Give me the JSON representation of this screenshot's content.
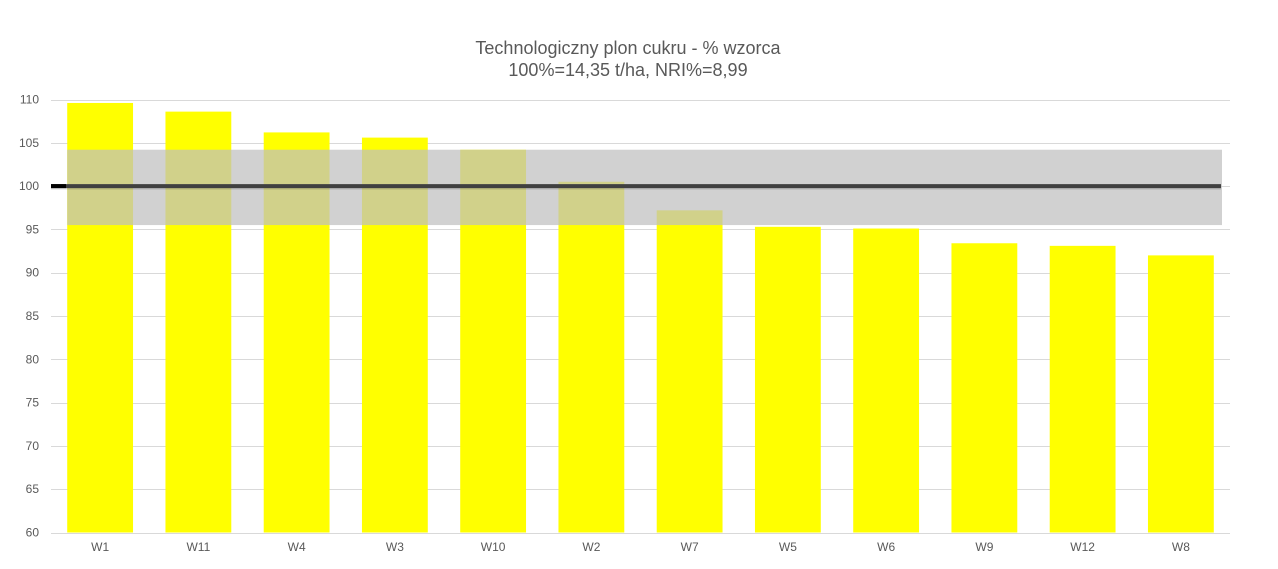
{
  "chart_data": {
    "type": "bar",
    "title": "Technologiczny plon cukru - % wzorca",
    "subtitle": "100%=14,35 t/ha, NRI%=8,99",
    "xlabel": "",
    "ylabel": "",
    "categories": [
      "W1",
      "W11",
      "W4",
      "W3",
      "W10",
      "W2",
      "W7",
      "W5",
      "W6",
      "W9",
      "W12",
      "W8"
    ],
    "values": [
      109.6,
      108.6,
      106.2,
      105.6,
      104.2,
      100.5,
      97.2,
      95.3,
      95.1,
      93.4,
      93.1,
      92.0
    ],
    "ylim": [
      60,
      110
    ],
    "yticks": [
      60,
      65,
      70,
      75,
      80,
      85,
      90,
      95,
      100,
      105,
      110
    ],
    "reference_line": 100,
    "reference_band": [
      95.5,
      104.2
    ],
    "grid": true,
    "legend": "none",
    "colors": {
      "bar": "#FFFF00",
      "band": "#BFBFBF",
      "reference_line": "#404040",
      "grid": "#D9D9D9",
      "text": "#595959"
    }
  }
}
